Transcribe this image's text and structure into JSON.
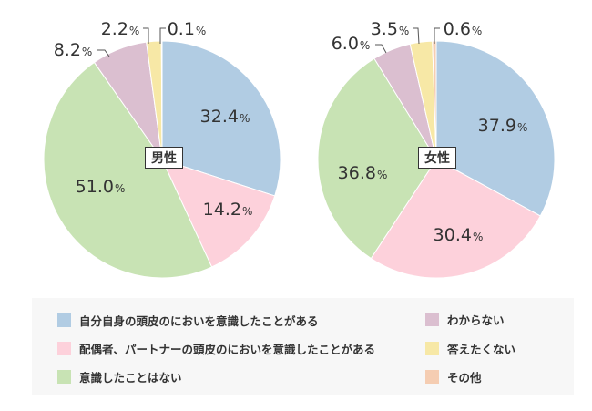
{
  "chart_data": [
    {
      "type": "pie",
      "title": "男性",
      "start": "top",
      "direction": "clockwise",
      "categories": [
        "自分自身の頭皮のにおいを意識したことがある",
        "配偶者、パートナーの頭皮のにおいを意識したことがある",
        "意識したことはない",
        "わからない",
        "答えたくない",
        "その他"
      ],
      "values": [
        32.4,
        14.2,
        51.0,
        8.2,
        2.2,
        0.1
      ],
      "unit": "%"
    },
    {
      "type": "pie",
      "title": "女性",
      "start": "top",
      "direction": "clockwise",
      "categories": [
        "自分自身の頭皮のにおいを意識したことがある",
        "配偶者、パートナーの頭皮のにおいを意識したことがある",
        "意識したことはない",
        "わからない",
        "答えたくない",
        "その他"
      ],
      "values": [
        37.9,
        30.4,
        36.8,
        6.0,
        3.5,
        0.6
      ],
      "unit": "%"
    }
  ],
  "colors": [
    "#b1cce3",
    "#fdd1db",
    "#c8e3b4",
    "#dbbfd0",
    "#f7e8a6",
    "#f5cdb2"
  ],
  "legend": {
    "placement": "bottom",
    "items": [
      {
        "label": "自分自身の頭皮のにおいを意識したことがある"
      },
      {
        "label": "配偶者、パートナーの頭皮のにおいを意識したことがある"
      },
      {
        "label": "意識したことはない"
      },
      {
        "label": "わからない"
      },
      {
        "label": "答えたくない"
      },
      {
        "label": "その他"
      }
    ]
  },
  "pct_symbol": "%"
}
